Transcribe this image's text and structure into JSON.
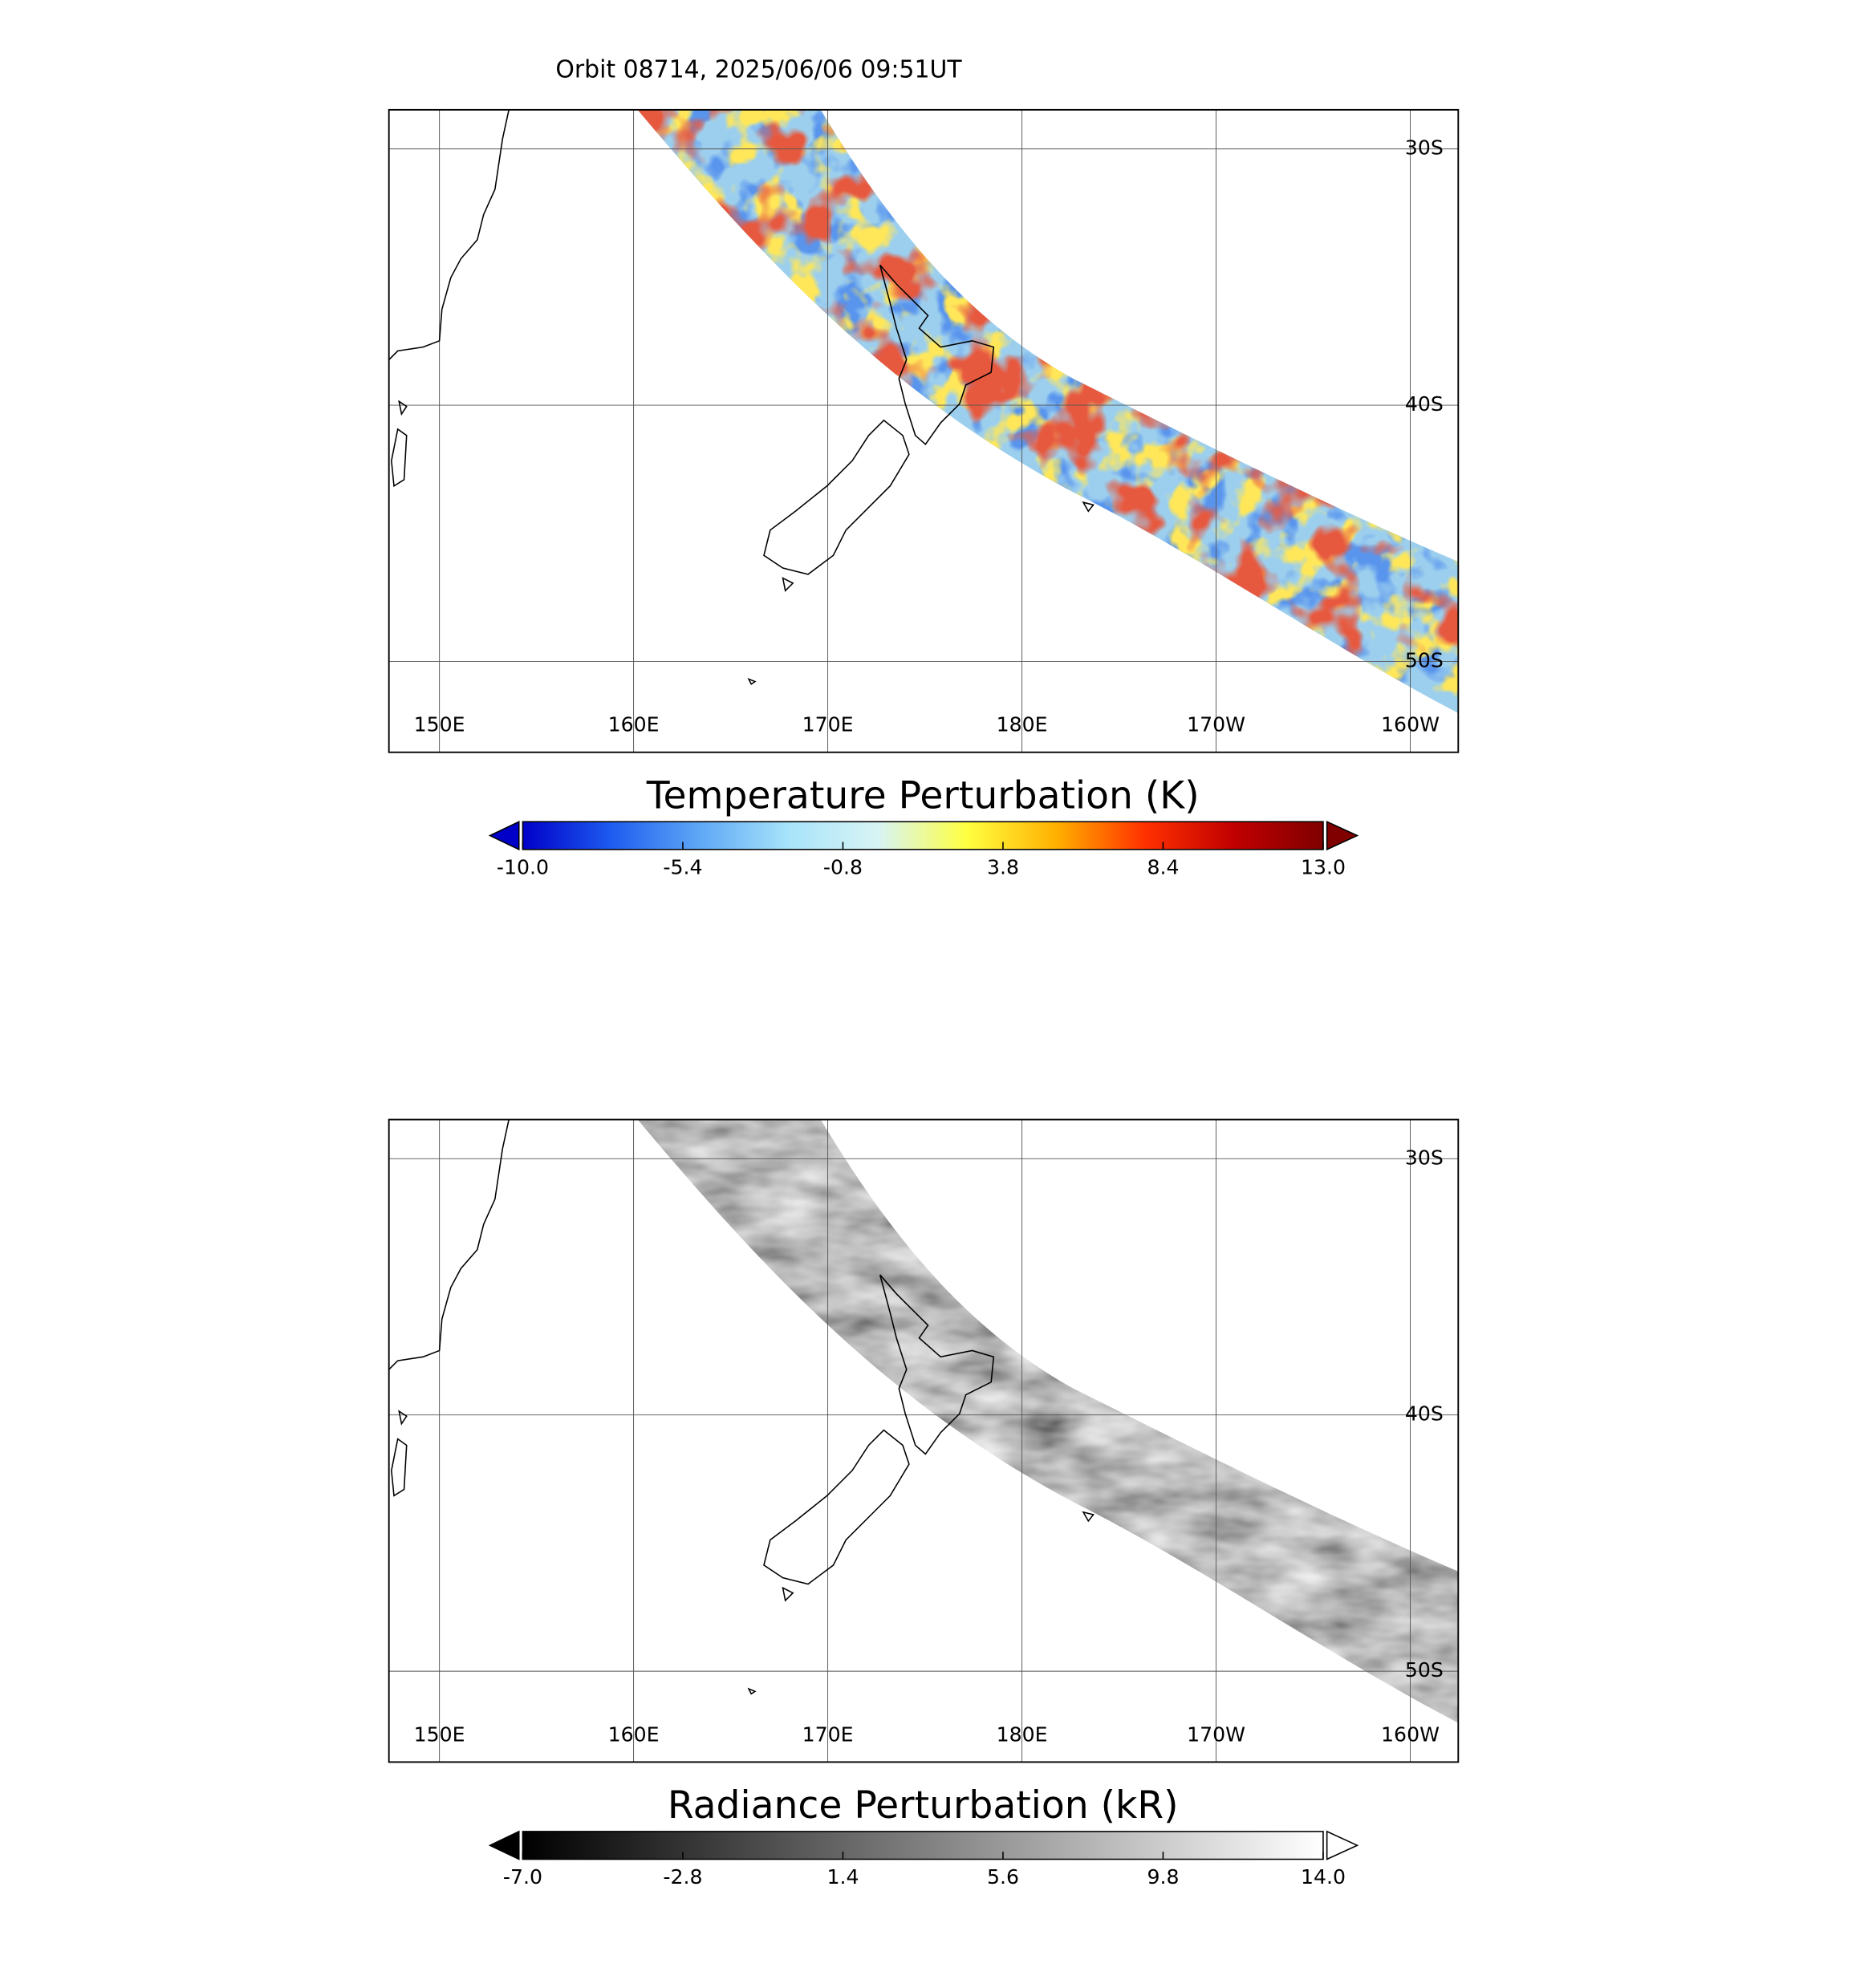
{
  "title": "Orbit 08714, 2025/06/06 09:51UT",
  "panels": [
    {
      "lon_labels": [
        "150E",
        "160E",
        "170E",
        "180E",
        "170W",
        "160W"
      ],
      "lat_labels": [
        "30S",
        "40S",
        "50S"
      ],
      "colorbar": {
        "title": "Temperature Perturbation (K)",
        "lim": [
          -10,
          13
        ],
        "ticks": [
          {
            "value": -10,
            "label": "-10.0"
          },
          -5.4,
          -0.8,
          3.8,
          8.4,
          {
            "value": 13,
            "label": "13.0"
          }
        ],
        "colors": [
          "#0000c8",
          "#1e5cf0",
          "#5fa8f5",
          "#a8e4fa",
          "#d8f4f4",
          "#ffff40",
          "#ffb000",
          "#ff3000",
          "#c00000",
          "#800000"
        ]
      }
    },
    {
      "lon_labels": [
        "150E",
        "160E",
        "170E",
        "180E",
        "170W",
        "160W"
      ],
      "lat_labels": [
        "30S",
        "40S",
        "50S"
      ],
      "colorbar": {
        "title": "Radiance Perturbation (kR)",
        "lim": [
          -7,
          14
        ],
        "ticks": [
          {
            "value": -7,
            "label": "-7.0"
          },
          -2.8,
          1.4,
          5.6,
          9.8,
          {
            "value": 14,
            "label": "14.0"
          }
        ],
        "colors": [
          "#000000",
          "#ffffff"
        ]
      }
    }
  ]
}
